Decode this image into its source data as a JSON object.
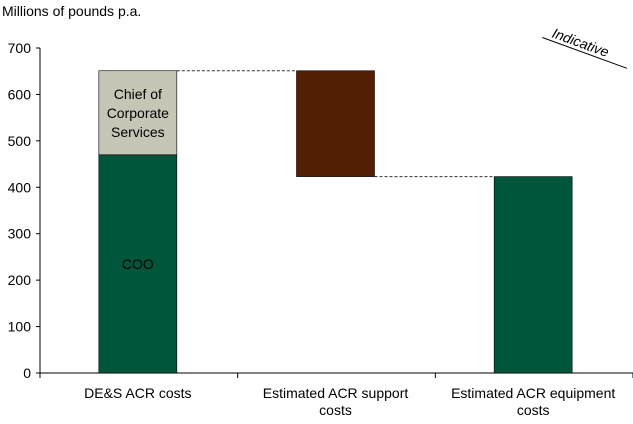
{
  "chart_data": {
    "type": "bar",
    "subtype": "waterfall",
    "ylabel": "Millions of pounds p.a.",
    "ylim": [
      0,
      700
    ],
    "yticks": [
      0,
      100,
      200,
      300,
      400,
      500,
      600,
      700
    ],
    "categories": [
      "DE&S ACR costs",
      "Estimated ACR support costs",
      "Estimated ACR equipment costs"
    ],
    "category_lines": [
      [
        "DE&S ACR costs"
      ],
      [
        "Estimated ACR support",
        "costs"
      ],
      [
        "Estimated ACR equipment",
        "costs"
      ]
    ],
    "bars": [
      {
        "category": 0,
        "name": "COO",
        "label_lines": [
          "COO"
        ],
        "base": 0,
        "value": 470,
        "color": "#00563b",
        "label_color": "#ffffff"
      },
      {
        "category": 0,
        "name": "Chief of Corporate Services",
        "label_lines": [
          "Chief of",
          "Corporate",
          "Services"
        ],
        "base": 470,
        "value": 181,
        "color": "#c6c5b6",
        "label_color": "#000000"
      },
      {
        "category": 1,
        "name": "Estimated ACR support costs",
        "label_lines": [],
        "base": 423,
        "value": 228,
        "color": "#531f04",
        "label_color": "#ffffff"
      },
      {
        "category": 2,
        "name": "Estimated ACR equipment costs",
        "label_lines": [],
        "base": 0,
        "value": 423,
        "color": "#00563b",
        "label_color": "#ffffff"
      }
    ],
    "connectors": [
      [
        0,
        1,
        651
      ],
      [
        1,
        2,
        423
      ]
    ],
    "annotation": "Indicative"
  }
}
